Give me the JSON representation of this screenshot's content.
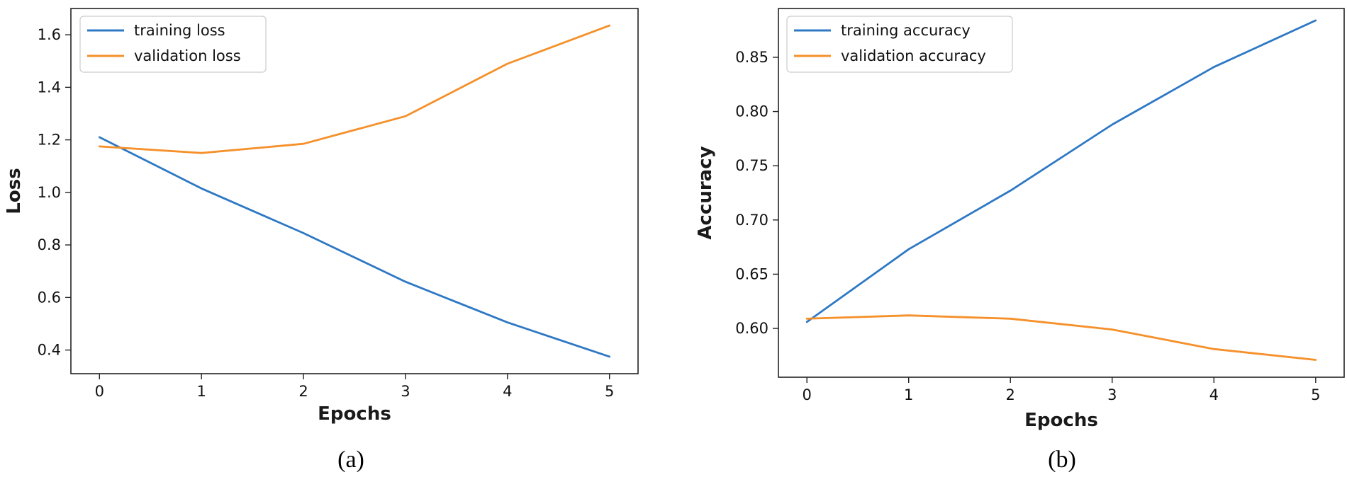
{
  "chart_data": [
    {
      "type": "line",
      "id": "loss",
      "caption": "(a)",
      "xlabel": "Epochs",
      "ylabel": "Loss",
      "x": [
        0,
        1,
        2,
        3,
        4,
        5
      ],
      "xticks": [
        "0",
        "1",
        "2",
        "3",
        "4",
        "5"
      ],
      "yticks": [
        "0.4",
        "0.6",
        "0.8",
        "1.0",
        "1.2",
        "1.4",
        "1.6"
      ],
      "xlim": [
        -0.28,
        5.28
      ],
      "ylim": [
        0.31,
        1.7
      ],
      "legend_position": "top-left",
      "series": [
        {
          "name": "training loss",
          "color": "#2e78c4",
          "values": [
            1.21,
            1.015,
            0.845,
            0.66,
            0.505,
            0.375
          ]
        },
        {
          "name": "validation loss",
          "color": "#f5902a",
          "values": [
            1.175,
            1.15,
            1.185,
            1.29,
            1.49,
            1.635
          ]
        }
      ]
    },
    {
      "type": "line",
      "id": "accuracy",
      "caption": "(b)",
      "xlabel": "Epochs",
      "ylabel": "Accuracy",
      "x": [
        0,
        1,
        2,
        3,
        4,
        5
      ],
      "xticks": [
        "0",
        "1",
        "2",
        "3",
        "4",
        "5"
      ],
      "yticks": [
        "0.60",
        "0.65",
        "0.70",
        "0.75",
        "0.80",
        "0.85"
      ],
      "xlim": [
        -0.28,
        5.28
      ],
      "ylim": [
        0.555,
        0.895
      ],
      "legend_position": "top-left",
      "series": [
        {
          "name": "training accuracy",
          "color": "#2e78c4",
          "values": [
            0.606,
            0.673,
            0.727,
            0.788,
            0.841,
            0.884
          ]
        },
        {
          "name": "validation accuracy",
          "color": "#f5902a",
          "values": [
            0.609,
            0.612,
            0.609,
            0.599,
            0.581,
            0.571
          ]
        }
      ]
    }
  ]
}
